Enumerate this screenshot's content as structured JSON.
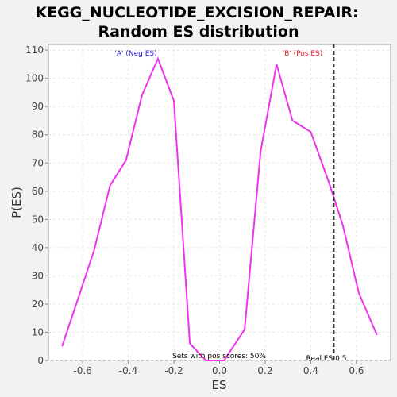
{
  "chart_data": {
    "type": "line",
    "title_line1": "KEGG_NUCLEOTIDE_EXCISION_REPAIR:",
    "title_line2": "Random ES distribution",
    "xlabel": "ES",
    "ylabel": "P(ES)",
    "xlim": [
      -0.75,
      0.75
    ],
    "ylim": [
      0,
      112
    ],
    "x_ticks": [
      "-0.6",
      "-0.4",
      "-0.2",
      "0.0",
      "0.2",
      "0.4",
      "0.6"
    ],
    "y_ticks": [
      "0",
      "10",
      "20",
      "30",
      "40",
      "50",
      "60",
      "70",
      "80",
      "90",
      "100",
      "110"
    ],
    "grid": true,
    "series": [
      {
        "color": "#ee33ee",
        "x": [
          -0.69,
          -0.62,
          -0.55,
          -0.48,
          -0.41,
          -0.34,
          -0.27,
          -0.2,
          -0.13,
          -0.06,
          0.02,
          0.11,
          0.18,
          0.25,
          0.32,
          0.4,
          0.48,
          0.54,
          0.61,
          0.69
        ],
        "y": [
          5,
          22,
          39,
          62,
          71,
          94,
          107,
          92,
          6,
          0,
          0,
          11,
          74,
          105,
          85,
          81,
          63,
          48,
          24,
          9
        ]
      }
    ],
    "real_es": 0.5,
    "annotations": {
      "neg_label": "'A' (Neg ES)",
      "pos_label": "'B' (Pos ES)",
      "pos_fraction_label": "Sets with pos scores: 50%",
      "real_es_label": "Real ES 0.5"
    },
    "colors": {
      "neg_label": "#2222cc",
      "pos_label": "#dd2222",
      "real_es_line": "#333333"
    }
  }
}
